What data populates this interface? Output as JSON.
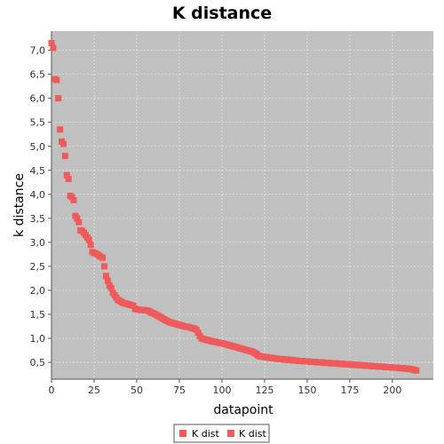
{
  "chart_data": {
    "type": "scatter",
    "title": "K distance",
    "xlabel": "datapoint",
    "ylabel": "k distance",
    "xlim": [
      0,
      224
    ],
    "ylim": [
      0.15,
      7.4
    ],
    "x_ticks": [
      0,
      25,
      50,
      75,
      100,
      125,
      150,
      175,
      200
    ],
    "x_tick_labels": [
      "0",
      "25",
      "50",
      "75",
      "100",
      "125",
      "150",
      "175",
      "200"
    ],
    "y_ticks": [
      0.5,
      1.0,
      1.5,
      2.0,
      2.5,
      3.0,
      3.5,
      4.0,
      4.5,
      5.0,
      5.5,
      6.0,
      6.5,
      7.0
    ],
    "y_tick_labels": [
      "0,5",
      "1,0",
      "1,5",
      "2,0",
      "2,5",
      "3,0",
      "3,5",
      "4,0",
      "4,5",
      "5,0",
      "5,5",
      "6,0",
      "6,5",
      "7,0"
    ],
    "grid": true,
    "legend_position": "bottom-center",
    "colors": {
      "plot_background": "#c0c0c0",
      "marker": "#f05a5a",
      "grid": "#e6e6e6"
    },
    "series": [
      {
        "name": "K dist",
        "points": [
          [
            0,
            7.15
          ],
          [
            1,
            7.05
          ],
          [
            2,
            6.4
          ],
          [
            3,
            6.38
          ],
          [
            4,
            6.0
          ],
          [
            5,
            5.35
          ],
          [
            6,
            5.1
          ],
          [
            7,
            5.05
          ],
          [
            8,
            4.8
          ],
          [
            9,
            4.4
          ],
          [
            10,
            4.32
          ],
          [
            11,
            3.97
          ],
          [
            12,
            3.94
          ],
          [
            13,
            3.88
          ],
          [
            14,
            3.55
          ],
          [
            15,
            3.5
          ],
          [
            16,
            3.42
          ],
          [
            17,
            3.25
          ],
          [
            18,
            3.24
          ],
          [
            19,
            3.2
          ],
          [
            20,
            3.15
          ],
          [
            21,
            3.1
          ],
          [
            22,
            3.05
          ],
          [
            23,
            2.95
          ],
          [
            24,
            2.8
          ],
          [
            25,
            2.78
          ],
          [
            26,
            2.77
          ],
          [
            27,
            2.75
          ],
          [
            28,
            2.72
          ],
          [
            29,
            2.7
          ],
          [
            30,
            2.68
          ],
          [
            31,
            2.5
          ],
          [
            32,
            2.3
          ],
          [
            33,
            2.2
          ],
          [
            34,
            2.1
          ],
          [
            35,
            2.05
          ],
          [
            36,
            1.95
          ],
          [
            37,
            1.9
          ],
          [
            38,
            1.85
          ],
          [
            39,
            1.8
          ],
          [
            40,
            1.78
          ],
          [
            41,
            1.76
          ],
          [
            42,
            1.74
          ],
          [
            43,
            1.73
          ],
          [
            44,
            1.72
          ],
          [
            45,
            1.71
          ],
          [
            46,
            1.7
          ],
          [
            47,
            1.69
          ],
          [
            48,
            1.68
          ],
          [
            49,
            1.62
          ],
          [
            50,
            1.6
          ],
          [
            51,
            1.6
          ],
          [
            52,
            1.59
          ],
          [
            53,
            1.59
          ],
          [
            54,
            1.59
          ],
          [
            55,
            1.58
          ],
          [
            56,
            1.58
          ],
          [
            57,
            1.57
          ],
          [
            58,
            1.55
          ],
          [
            59,
            1.53
          ],
          [
            60,
            1.52
          ],
          [
            61,
            1.5
          ],
          [
            62,
            1.48
          ],
          [
            63,
            1.46
          ],
          [
            64,
            1.44
          ],
          [
            65,
            1.42
          ],
          [
            66,
            1.4
          ],
          [
            67,
            1.38
          ],
          [
            68,
            1.36
          ],
          [
            69,
            1.34
          ],
          [
            70,
            1.33
          ],
          [
            71,
            1.32
          ],
          [
            72,
            1.31
          ],
          [
            73,
            1.3
          ],
          [
            74,
            1.29
          ],
          [
            75,
            1.28
          ],
          [
            76,
            1.27
          ],
          [
            77,
            1.26
          ],
          [
            78,
            1.25
          ],
          [
            79,
            1.24
          ],
          [
            80,
            1.24
          ],
          [
            81,
            1.23
          ],
          [
            82,
            1.22
          ],
          [
            83,
            1.21
          ],
          [
            84,
            1.2
          ],
          [
            85,
            1.18
          ],
          [
            86,
            1.12
          ],
          [
            87,
            1.05
          ],
          [
            88,
            1.0
          ],
          [
            89,
            0.99
          ],
          [
            90,
            0.98
          ],
          [
            91,
            0.97
          ],
          [
            92,
            0.96
          ],
          [
            93,
            0.95
          ],
          [
            94,
            0.94
          ],
          [
            95,
            0.93
          ],
          [
            96,
            0.93
          ],
          [
            97,
            0.92
          ],
          [
            98,
            0.91
          ],
          [
            99,
            0.9
          ],
          [
            100,
            0.9
          ],
          [
            101,
            0.89
          ],
          [
            102,
            0.88
          ],
          [
            103,
            0.87
          ],
          [
            104,
            0.86
          ],
          [
            105,
            0.85
          ],
          [
            106,
            0.84
          ],
          [
            107,
            0.83
          ],
          [
            108,
            0.82
          ],
          [
            109,
            0.81
          ],
          [
            110,
            0.8
          ],
          [
            111,
            0.79
          ],
          [
            112,
            0.78
          ],
          [
            113,
            0.77
          ],
          [
            114,
            0.76
          ],
          [
            115,
            0.75
          ],
          [
            116,
            0.74
          ],
          [
            117,
            0.73
          ],
          [
            118,
            0.72
          ],
          [
            119,
            0.7
          ],
          [
            120,
            0.68
          ],
          [
            121,
            0.65
          ],
          [
            122,
            0.63
          ],
          [
            123,
            0.62
          ],
          [
            124,
            0.62
          ],
          [
            125,
            0.61
          ],
          [
            126,
            0.61
          ],
          [
            127,
            0.6
          ],
          [
            128,
            0.6
          ],
          [
            129,
            0.59
          ],
          [
            130,
            0.59
          ],
          [
            131,
            0.58
          ],
          [
            132,
            0.58
          ],
          [
            133,
            0.57
          ],
          [
            134,
            0.57
          ],
          [
            135,
            0.57
          ],
          [
            136,
            0.56
          ],
          [
            137,
            0.56
          ],
          [
            138,
            0.56
          ],
          [
            139,
            0.55
          ],
          [
            140,
            0.55
          ],
          [
            141,
            0.55
          ],
          [
            142,
            0.54
          ],
          [
            143,
            0.54
          ],
          [
            144,
            0.54
          ],
          [
            145,
            0.53
          ],
          [
            146,
            0.53
          ],
          [
            147,
            0.53
          ],
          [
            148,
            0.52
          ],
          [
            149,
            0.52
          ],
          [
            150,
            0.52
          ],
          [
            151,
            0.52
          ],
          [
            152,
            0.51
          ],
          [
            153,
            0.51
          ],
          [
            154,
            0.51
          ],
          [
            155,
            0.51
          ],
          [
            156,
            0.5
          ],
          [
            157,
            0.5
          ],
          [
            158,
            0.5
          ],
          [
            159,
            0.5
          ],
          [
            160,
            0.49
          ],
          [
            161,
            0.49
          ],
          [
            162,
            0.49
          ],
          [
            163,
            0.49
          ],
          [
            164,
            0.48
          ],
          [
            165,
            0.48
          ],
          [
            166,
            0.48
          ],
          [
            167,
            0.48
          ],
          [
            168,
            0.47
          ],
          [
            169,
            0.47
          ],
          [
            170,
            0.47
          ],
          [
            171,
            0.47
          ],
          [
            172,
            0.46
          ],
          [
            173,
            0.46
          ],
          [
            174,
            0.46
          ],
          [
            175,
            0.46
          ],
          [
            176,
            0.45
          ],
          [
            177,
            0.45
          ],
          [
            178,
            0.45
          ],
          [
            179,
            0.45
          ],
          [
            180,
            0.44
          ],
          [
            181,
            0.44
          ],
          [
            182,
            0.44
          ],
          [
            183,
            0.44
          ],
          [
            184,
            0.43
          ],
          [
            185,
            0.43
          ],
          [
            186,
            0.43
          ],
          [
            187,
            0.43
          ],
          [
            188,
            0.42
          ],
          [
            189,
            0.42
          ],
          [
            190,
            0.42
          ],
          [
            191,
            0.42
          ],
          [
            192,
            0.41
          ],
          [
            193,
            0.41
          ],
          [
            194,
            0.41
          ],
          [
            195,
            0.41
          ],
          [
            196,
            0.4
          ],
          [
            197,
            0.4
          ],
          [
            198,
            0.4
          ],
          [
            199,
            0.4
          ],
          [
            200,
            0.39
          ],
          [
            201,
            0.39
          ],
          [
            202,
            0.39
          ],
          [
            203,
            0.39
          ],
          [
            204,
            0.38
          ],
          [
            205,
            0.38
          ],
          [
            206,
            0.38
          ],
          [
            207,
            0.37
          ],
          [
            208,
            0.37
          ],
          [
            209,
            0.37
          ],
          [
            210,
            0.36
          ],
          [
            211,
            0.36
          ],
          [
            212,
            0.35
          ],
          [
            213,
            0.34
          ],
          [
            214,
            0.33
          ]
        ]
      }
    ],
    "legend": [
      {
        "label": "K dist",
        "color": "#f05a5a"
      },
      {
        "label": "K dist",
        "color": "#f05a5a"
      }
    ]
  }
}
